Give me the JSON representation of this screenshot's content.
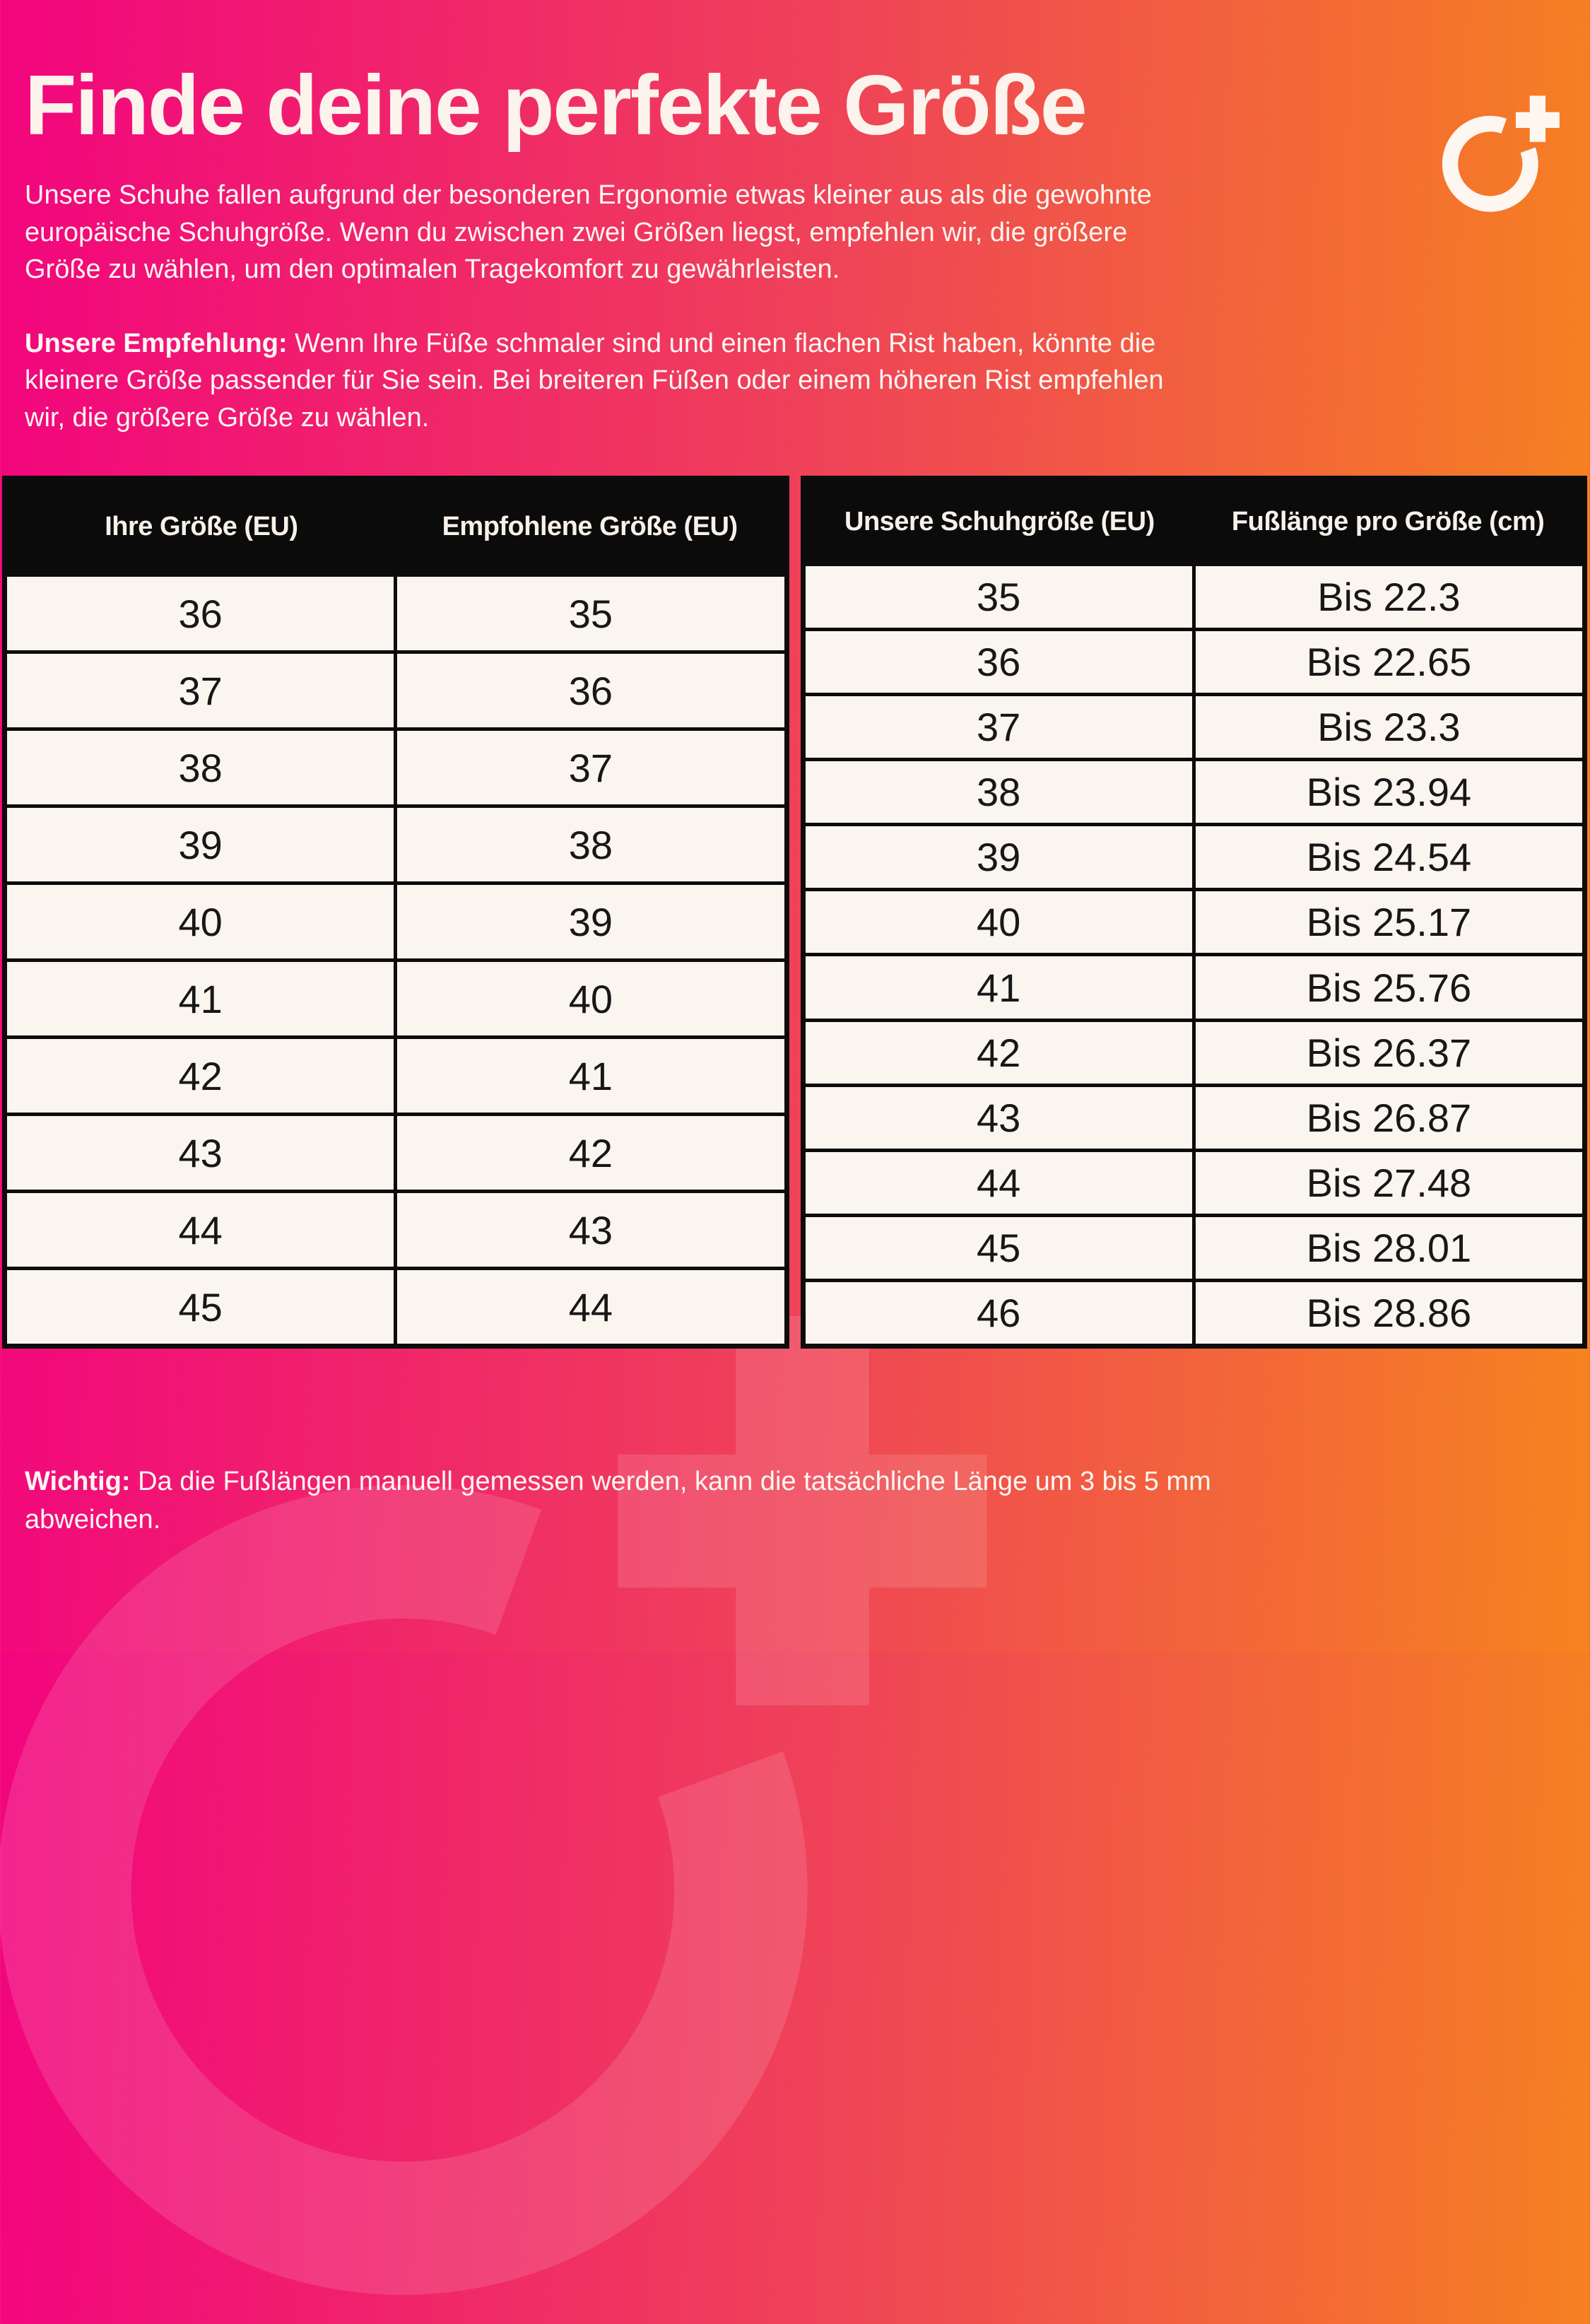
{
  "colors": {
    "gradient_left": "#f2057e",
    "gradient_mid": "#ef4457",
    "gradient_right": "#f6831f",
    "table_header_bg": "#0b0b0b",
    "table_cell_bg": "#fbf5ef",
    "text_light": "#fbf4ee",
    "text_dark": "#171717"
  },
  "header": {
    "title": "Finde deine perfekte Größe",
    "logo": "o-plus-logo"
  },
  "intro": {
    "paragraph": "Unsere Schuhe fallen aufgrund der besonderen Ergonomie etwas kleiner aus als die gewohnte\neuropäische Schuhgröße. Wenn du zwischen zwei Größen liegst, empfehlen wir, die größere\nGröße zu wählen, um den optimalen Tragekomfort zu gewährleisten.",
    "recommendation_lead": "Unsere Empfehlung:",
    "recommendation_text": " Wenn Ihre Füße schmaler sind und einen flachen Rist haben, könnte die\nkleinere Größe passender für Sie sein. Bei breiteren Füßen oder einem höheren Rist empfehlen\nwir, die größere Größe zu wählen."
  },
  "size_table": {
    "headers": [
      "Ihre Größe (EU)",
      "Empfohlene Größe (EU)"
    ],
    "rows": [
      [
        "36",
        "35"
      ],
      [
        "37",
        "36"
      ],
      [
        "38",
        "37"
      ],
      [
        "39",
        "38"
      ],
      [
        "40",
        "39"
      ],
      [
        "41",
        "40"
      ],
      [
        "42",
        "41"
      ],
      [
        "43",
        "42"
      ],
      [
        "44",
        "43"
      ],
      [
        "45",
        "44"
      ]
    ]
  },
  "foot_length_table": {
    "headers": [
      "Unsere Schuhgröße (EU)",
      "Fußlänge pro Größe (cm)"
    ],
    "rows": [
      [
        "35",
        "Bis 22.3"
      ],
      [
        "36",
        "Bis 22.65"
      ],
      [
        "37",
        "Bis 23.3"
      ],
      [
        "38",
        "Bis 23.94"
      ],
      [
        "39",
        "Bis 24.54"
      ],
      [
        "40",
        "Bis 25.17"
      ],
      [
        "41",
        "Bis 25.76"
      ],
      [
        "42",
        "Bis 26.37"
      ],
      [
        "43",
        "Bis 26.87"
      ],
      [
        "44",
        "Bis 27.48"
      ],
      [
        "45",
        "Bis 28.01"
      ],
      [
        "46",
        "Bis 28.86"
      ]
    ]
  },
  "footer": {
    "lead": "Wichtig:",
    "text": " Da die Fußlängen manuell gemessen werden, kann die tatsächliche Länge um 3 bis 5 mm\nabweichen."
  }
}
